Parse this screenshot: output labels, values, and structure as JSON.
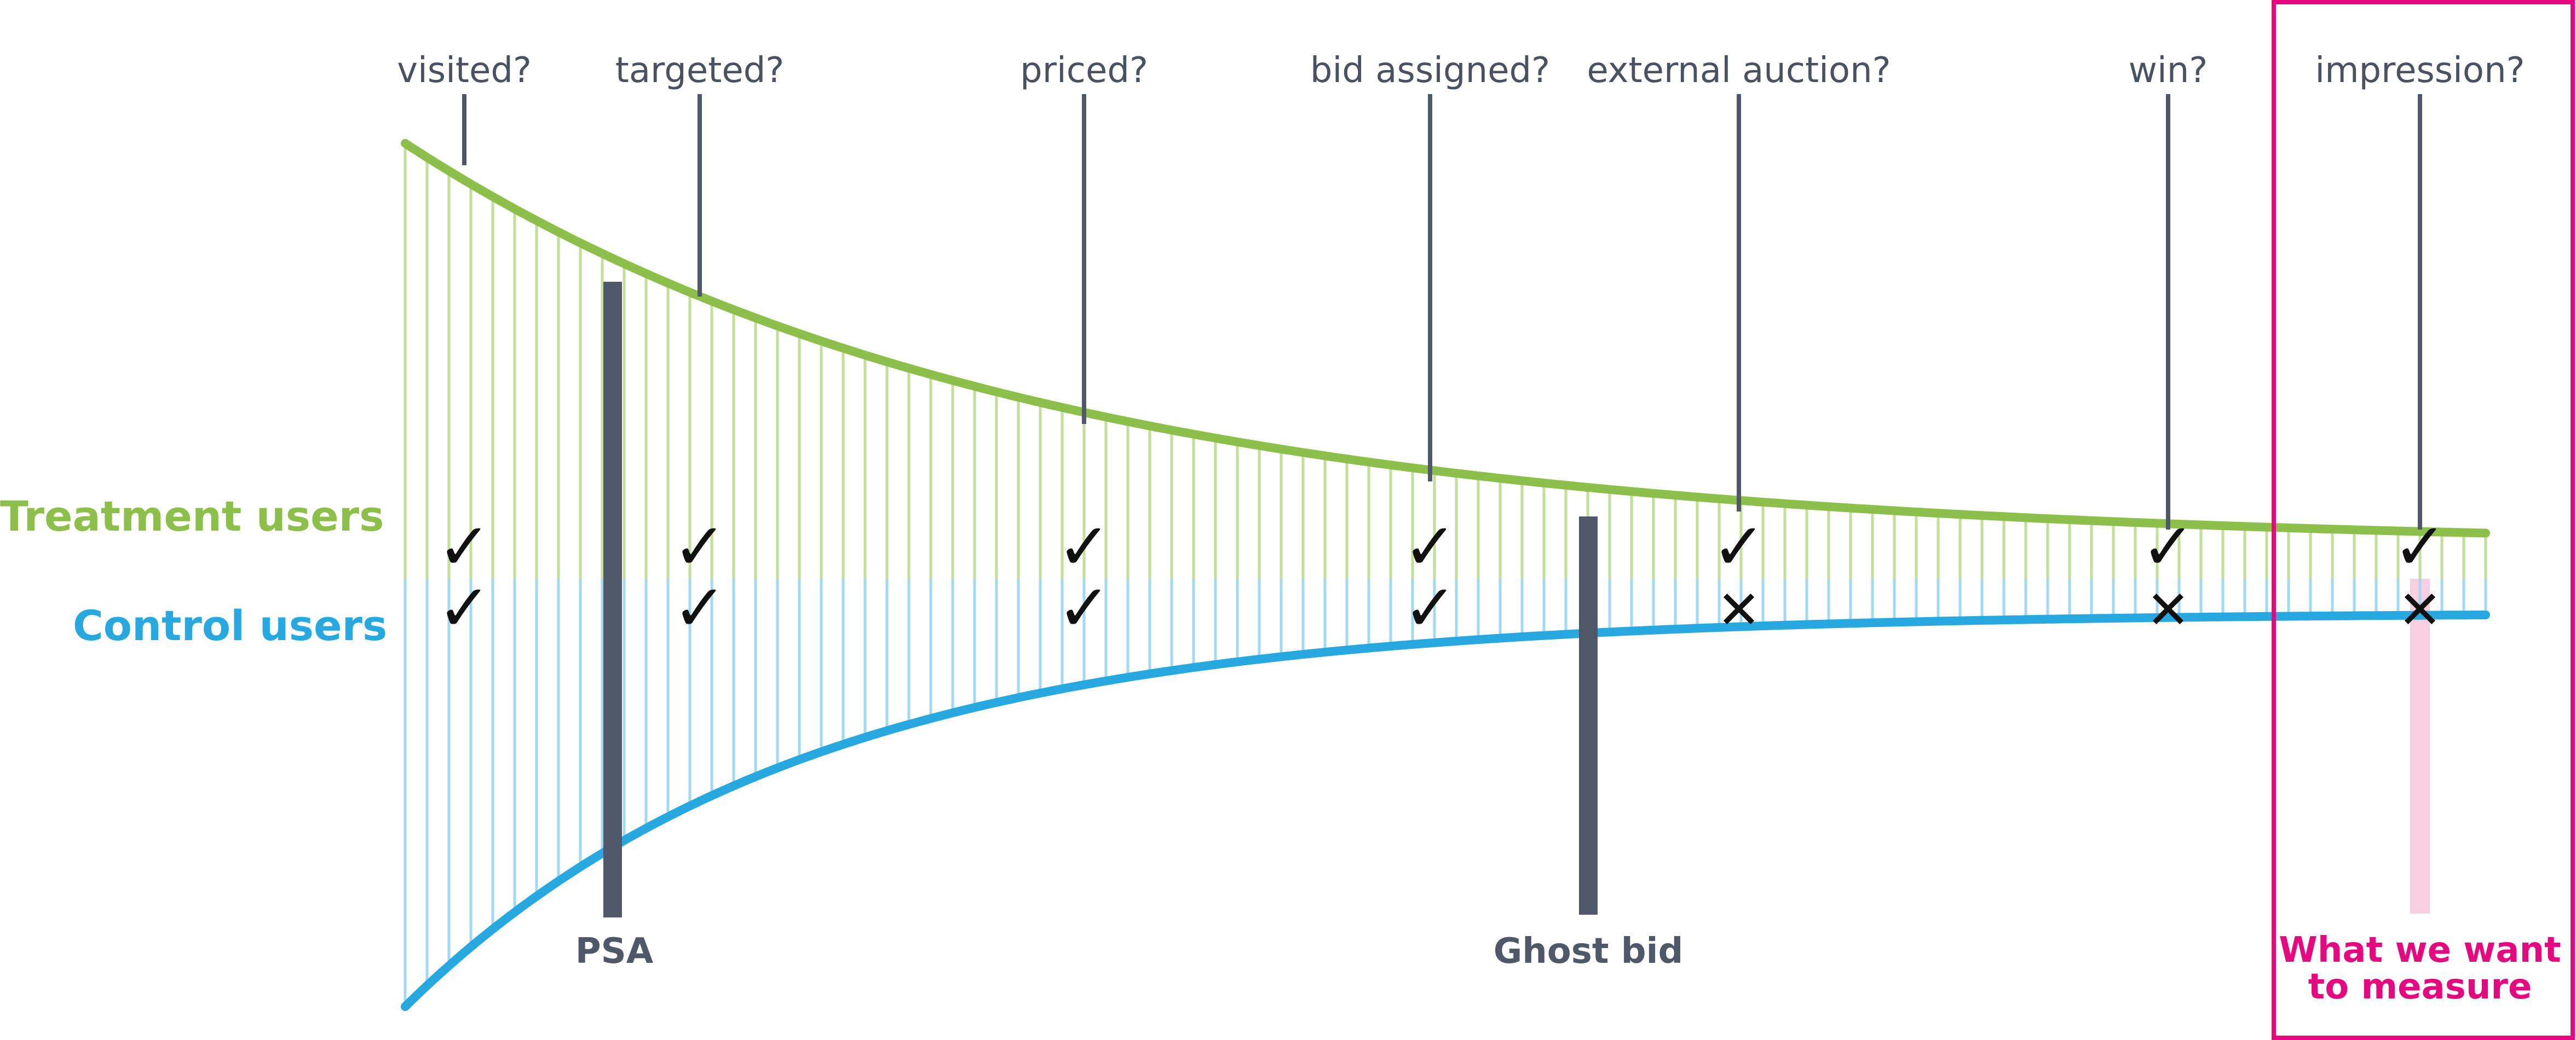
{
  "stages": [
    {
      "label": "visited?",
      "treatment": "check",
      "control": "check"
    },
    {
      "label": "targeted?",
      "treatment": "check",
      "control": "check"
    },
    {
      "label": "priced?",
      "treatment": "check",
      "control": "check"
    },
    {
      "label": "bid assigned?",
      "treatment": "check",
      "control": "check"
    },
    {
      "label": "external auction?",
      "treatment": "check",
      "control": "cross"
    },
    {
      "label": "win?",
      "treatment": "check",
      "control": "cross"
    },
    {
      "label": "impression?",
      "treatment": "check",
      "control": "cross"
    }
  ],
  "groups": {
    "treatment": {
      "label": "Treatment users",
      "color": "#8cc04b",
      "hatch_color": "#c3e09a"
    },
    "control": {
      "label": "Control users",
      "color": "#27a8df",
      "hatch_color": "#a3d8f0"
    }
  },
  "markers": {
    "psa": "PSA",
    "ghost_bid": "Ghost bid",
    "color": "#4f5868"
  },
  "measure": {
    "line1": "What we want",
    "line2": "to measure",
    "color": "#e5097f",
    "highlight_color": "#f7cfe0"
  },
  "symbols": {
    "check": "✓",
    "cross": "✕"
  }
}
